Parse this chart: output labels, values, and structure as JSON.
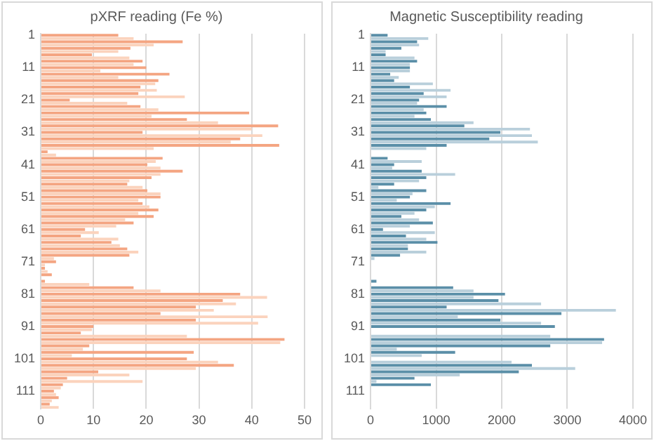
{
  "chart_data": [
    {
      "type": "bar",
      "orientation": "horizontal",
      "title": "pXRF reading (Fe %)",
      "categories": [
        "1",
        null,
        null,
        null,
        null,
        null,
        null,
        null,
        null,
        null,
        "11",
        null,
        null,
        null,
        null,
        null,
        null,
        null,
        null,
        null,
        "21",
        null,
        null,
        null,
        null,
        null,
        null,
        null,
        null,
        null,
        "31",
        null,
        null,
        null,
        null,
        null,
        null,
        null,
        null,
        null,
        "41",
        null,
        null,
        null,
        null,
        null,
        null,
        null,
        null,
        null,
        "51",
        null,
        null,
        null,
        null,
        null,
        null,
        null,
        null,
        null,
        "61",
        null,
        null,
        null,
        null,
        null,
        null,
        null,
        null,
        null,
        "71",
        null,
        null,
        null,
        null,
        null,
        null,
        null,
        null,
        null,
        "81",
        null,
        null,
        null,
        null,
        null,
        null,
        null,
        null,
        null,
        "91",
        null,
        null,
        null,
        null,
        null,
        null,
        null,
        null,
        null,
        "101",
        null,
        null,
        null,
        null,
        null,
        null,
        null,
        null,
        null,
        "111",
        null,
        null,
        null,
        null,
        null
      ],
      "values": [
        14.7,
        17.6,
        26.9,
        21.4,
        17,
        14.7,
        9.7,
        16.8,
        19.3,
        17.6,
        20,
        11.3,
        24.4,
        14.7,
        22.3,
        21.7,
        18.9,
        22,
        18.5,
        27.3,
        5.5,
        16.4,
        18.9,
        22.3,
        39.5,
        21,
        27.7,
        33.6,
        45,
        40,
        19.3,
        42,
        37.8,
        36,
        45.2,
        21.4,
        1.3,
        2.9,
        23.1,
        21.8,
        20.2,
        22.7,
        26.9,
        22.7,
        21,
        16.8,
        16.4,
        19.3,
        20.2,
        22.7,
        22.7,
        18.5,
        19.3,
        20.6,
        22.3,
        18.5,
        21.4,
        16,
        17.6,
        14.3,
        8.4,
        11,
        7.6,
        14.7,
        13.4,
        15,
        16.4,
        18.5,
        16.8,
        2.5,
        2.9,
        0.8,
        0.8,
        1.3,
        2.1,
        null,
        0.8,
        9.2,
        17.6,
        22.7,
        37.8,
        42.9,
        34.5,
        37,
        29.4,
        32.8,
        22.7,
        43,
        29.4,
        41.2,
        10,
        9.7,
        7.6,
        27.7,
        46.2,
        45.4,
        9.2,
        8,
        29,
        5.9,
        27.7,
        33.6,
        36.6,
        29.4,
        10.9,
        16.8,
        5,
        19.3,
        4.2,
        3.8,
        2.5,
        2.9,
        3.4,
        2.1,
        1.7,
        3.4
      ],
      "colors": [
        "#f4a582",
        "#fbd3bd",
        "#f4a582",
        "#fbd3bd",
        "#f4a582",
        "#fbd3bd",
        "#f4a582",
        "#fbd3bd",
        "#f4a582",
        "#fbd3bd",
        "#f4a582",
        "#fbd3bd",
        "#f4a582",
        "#fbd3bd",
        "#f4a582",
        "#fbd3bd",
        "#f4a582",
        "#fbd3bd",
        "#f4a582",
        "#fbd3bd",
        "#f4a582",
        "#fbd3bd",
        "#f4a582",
        "#fbd3bd",
        "#f4a582",
        "#fbd3bd",
        "#f4a582",
        "#fbd3bd",
        "#f4a582",
        "#fbd3bd",
        "#f4a582",
        "#fbd3bd",
        "#f4a582",
        "#fbd3bd",
        "#f4a582",
        "#fbd3bd",
        "#f4a582",
        "#fbd3bd",
        "#f4a582",
        "#fbd3bd",
        "#f4a582",
        "#fbd3bd",
        "#f4a582",
        "#fbd3bd",
        "#f4a582",
        "#fbd3bd",
        "#f4a582",
        "#fbd3bd",
        "#f4a582",
        "#fbd3bd",
        "#f4a582",
        "#fbd3bd",
        "#f4a582",
        "#fbd3bd",
        "#f4a582",
        "#fbd3bd",
        "#f4a582",
        "#fbd3bd",
        "#f4a582",
        "#fbd3bd",
        "#f4a582",
        "#fbd3bd",
        "#f4a582",
        "#fbd3bd",
        "#f4a582",
        "#fbd3bd",
        "#f4a582",
        "#fbd3bd",
        "#f4a582",
        "#fbd3bd",
        "#f4a582",
        "#fbd3bd",
        "#f4a582",
        "#fbd3bd",
        "#f4a582",
        "#fbd3bd",
        "#f4a582",
        "#fbd3bd",
        "#f4a582",
        "#fbd3bd",
        "#f4a582",
        "#fbd3bd",
        "#f4a582",
        "#fbd3bd",
        "#f4a582",
        "#fbd3bd",
        "#f4a582",
        "#fbd3bd",
        "#f4a582",
        "#fbd3bd",
        "#f4a582",
        "#fbd3bd",
        "#f4a582",
        "#fbd3bd",
        "#f4a582",
        "#fbd3bd",
        "#f4a582",
        "#fbd3bd",
        "#f4a582",
        "#fbd3bd",
        "#f4a582",
        "#fbd3bd",
        "#f4a582",
        "#fbd3bd",
        "#f4a582",
        "#fbd3bd",
        "#f4a582",
        "#fbd3bd",
        "#f4a582",
        "#fbd3bd",
        "#f4a582",
        "#fbd3bd",
        "#f4a582",
        "#fbd3bd",
        "#f4a582",
        "#fbd3bd"
      ],
      "xlim": [
        0,
        50
      ],
      "xticks": [
        0,
        10,
        20,
        30,
        40,
        50
      ],
      "grid": "x"
    },
    {
      "type": "bar",
      "orientation": "horizontal",
      "title": "Magnetic Susceptibility reading",
      "categories": [
        "1",
        null,
        null,
        null,
        null,
        null,
        null,
        null,
        null,
        null,
        "11",
        null,
        null,
        null,
        null,
        null,
        null,
        null,
        null,
        null,
        "21",
        null,
        null,
        null,
        null,
        null,
        null,
        null,
        null,
        null,
        "31",
        null,
        null,
        null,
        null,
        null,
        null,
        null,
        null,
        null,
        "41",
        null,
        null,
        null,
        null,
        null,
        null,
        null,
        null,
        null,
        "51",
        null,
        null,
        null,
        null,
        null,
        null,
        null,
        null,
        null,
        "61",
        null,
        null,
        null,
        null,
        null,
        null,
        null,
        null,
        null,
        "71",
        null,
        null,
        null,
        null,
        null,
        null,
        null,
        null,
        null,
        "81",
        null,
        null,
        null,
        null,
        null,
        null,
        null,
        null,
        null,
        "91",
        null,
        null,
        null,
        null,
        null,
        null,
        null,
        null,
        null,
        "101",
        null,
        null,
        null,
        null,
        null,
        null,
        null,
        null,
        null,
        "111",
        null,
        null,
        null,
        null,
        null
      ],
      "values": [
        260,
        880,
        710,
        740,
        470,
        230,
        230,
        670,
        710,
        600,
        600,
        600,
        300,
        430,
        360,
        950,
        600,
        1220,
        810,
        1160,
        740,
        710,
        1160,
        810,
        850,
        670,
        920,
        1570,
        1430,
        2430,
        1980,
        2460,
        1810,
        2550,
        1160,
        850,
        0,
        0,
        260,
        780,
        360,
        330,
        780,
        1290,
        850,
        740,
        360,
        120,
        850,
        640,
        600,
        400,
        1220,
        980,
        850,
        670,
        470,
        740,
        950,
        600,
        190,
        980,
        540,
        850,
        1020,
        570,
        570,
        850,
        450,
        60,
        null,
        0,
        0,
        0,
        0,
        0,
        90,
        0,
        1260,
        1570,
        2050,
        1570,
        1950,
        2600,
        1160,
        3740,
        2910,
        1330,
        1980,
        2600,
        2810,
        0,
        0,
        2740,
        3560,
        3530,
        2740,
        400,
        1290,
        780,
        0,
        2150,
        2460,
        3120,
        2260,
        1360,
        670,
        90,
        920,
        null,
        0,
        0,
        0,
        0,
        0,
        0
      ],
      "colors": [
        "#5b8fa8",
        "#b9cfdb",
        "#5b8fa8",
        "#b9cfdb",
        "#5b8fa8",
        "#b9cfdb",
        "#5b8fa8",
        "#b9cfdb",
        "#5b8fa8",
        "#b9cfdb",
        "#5b8fa8",
        "#b9cfdb",
        "#5b8fa8",
        "#b9cfdb",
        "#5b8fa8",
        "#b9cfdb",
        "#5b8fa8",
        "#b9cfdb",
        "#5b8fa8",
        "#b9cfdb",
        "#5b8fa8",
        "#b9cfdb",
        "#5b8fa8",
        "#b9cfdb",
        "#5b8fa8",
        "#b9cfdb",
        "#5b8fa8",
        "#b9cfdb",
        "#5b8fa8",
        "#b9cfdb",
        "#5b8fa8",
        "#b9cfdb",
        "#5b8fa8",
        "#b9cfdb",
        "#5b8fa8",
        "#b9cfdb",
        "#5b8fa8",
        "#b9cfdb",
        "#5b8fa8",
        "#b9cfdb",
        "#5b8fa8",
        "#b9cfdb",
        "#5b8fa8",
        "#b9cfdb",
        "#5b8fa8",
        "#b9cfdb",
        "#5b8fa8",
        "#b9cfdb",
        "#5b8fa8",
        "#b9cfdb",
        "#5b8fa8",
        "#b9cfdb",
        "#5b8fa8",
        "#b9cfdb",
        "#5b8fa8",
        "#b9cfdb",
        "#5b8fa8",
        "#b9cfdb",
        "#5b8fa8",
        "#b9cfdb",
        "#5b8fa8",
        "#b9cfdb",
        "#5b8fa8",
        "#b9cfdb",
        "#5b8fa8",
        "#b9cfdb",
        "#5b8fa8",
        "#b9cfdb",
        "#5b8fa8",
        "#b9cfdb",
        "#5b8fa8",
        "#b9cfdb",
        "#5b8fa8",
        "#b9cfdb",
        "#5b8fa8",
        "#b9cfdb",
        "#5b8fa8",
        "#b9cfdb",
        "#5b8fa8",
        "#b9cfdb",
        "#5b8fa8",
        "#b9cfdb",
        "#5b8fa8",
        "#b9cfdb",
        "#5b8fa8",
        "#b9cfdb",
        "#5b8fa8",
        "#b9cfdb",
        "#5b8fa8",
        "#b9cfdb",
        "#5b8fa8",
        "#b9cfdb",
        "#5b8fa8",
        "#b9cfdb",
        "#5b8fa8",
        "#b9cfdb",
        "#5b8fa8",
        "#b9cfdb",
        "#5b8fa8",
        "#b9cfdb",
        "#5b8fa8",
        "#b9cfdb",
        "#5b8fa8",
        "#b9cfdb",
        "#5b8fa8",
        "#b9cfdb",
        "#5b8fa8",
        "#b9cfdb",
        "#5b8fa8",
        "#b9cfdb",
        "#5b8fa8",
        "#b9cfdb",
        "#5b8fa8",
        "#b9cfdb",
        "#5b8fa8",
        "#b9cfdb"
      ],
      "xlim": [
        0,
        4000
      ],
      "xticks": [
        0,
        1000,
        2000,
        3000,
        4000
      ],
      "grid": "x"
    }
  ]
}
